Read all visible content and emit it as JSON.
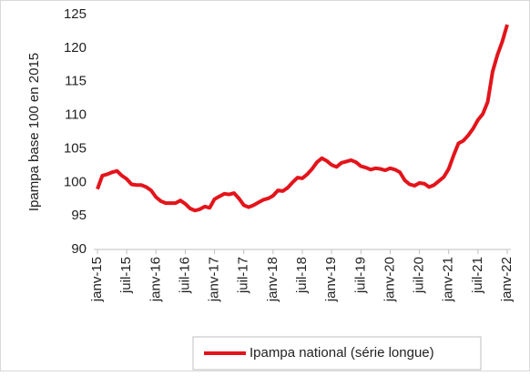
{
  "chart_data": {
    "type": "line",
    "y_label": "Ipampa base 100 en 2015",
    "categories": [
      "janv-15",
      null,
      null,
      null,
      null,
      null,
      "juil-15",
      null,
      null,
      null,
      null,
      null,
      "janv-16",
      null,
      null,
      null,
      null,
      null,
      "juil-16",
      null,
      null,
      null,
      null,
      null,
      "janv-17",
      null,
      null,
      null,
      null,
      null,
      "juil-17",
      null,
      null,
      null,
      null,
      null,
      "janv-18",
      null,
      null,
      null,
      null,
      null,
      "juil-18",
      null,
      null,
      null,
      null,
      null,
      "janv-19",
      null,
      null,
      null,
      null,
      null,
      "juil-19",
      null,
      null,
      null,
      null,
      null,
      "janv-20",
      null,
      null,
      null,
      null,
      null,
      "juil-20",
      null,
      null,
      null,
      null,
      null,
      "janv-21",
      null,
      null,
      null,
      null,
      null,
      "juil-21",
      null,
      null,
      null,
      null,
      null,
      "janv-22"
    ],
    "series": [
      {
        "name": "Ipampa national (série longue)",
        "color": "#e3141b",
        "values": [
          99,
          101,
          101.2,
          101.5,
          101.7,
          101,
          100.5,
          99.7,
          99.6,
          99.6,
          99.3,
          98.8,
          97.8,
          97.2,
          96.9,
          96.9,
          96.9,
          97.3,
          96.8,
          96.1,
          95.8,
          96.0,
          96.4,
          96.2,
          97.5,
          97.9,
          98.3,
          98.2,
          98.4,
          97.6,
          96.6,
          96.3,
          96.6,
          97.0,
          97.4,
          97.6,
          98.0,
          98.8,
          98.7,
          99.2,
          100.0,
          100.7,
          100.6,
          101.2,
          102.0,
          103.0,
          103.6,
          103.2,
          102.6,
          102.3,
          102.9,
          103.1,
          103.3,
          103.0,
          102.4,
          102.2,
          101.9,
          102.1,
          102.0,
          101.8,
          102.1,
          101.9,
          101.5,
          100.3,
          99.7,
          99.5,
          99.9,
          99.8,
          99.3,
          99.6,
          100.2,
          100.8,
          102.0,
          104.0,
          105.8,
          106.2,
          107.0,
          108.0,
          109.3,
          110.2,
          112.0,
          116.5,
          119.0,
          121.0,
          123.5
        ]
      }
    ],
    "ylim": [
      90,
      125
    ],
    "yticks": [
      90,
      95,
      100,
      105,
      110,
      115,
      120,
      125
    ],
    "grid": false
  }
}
